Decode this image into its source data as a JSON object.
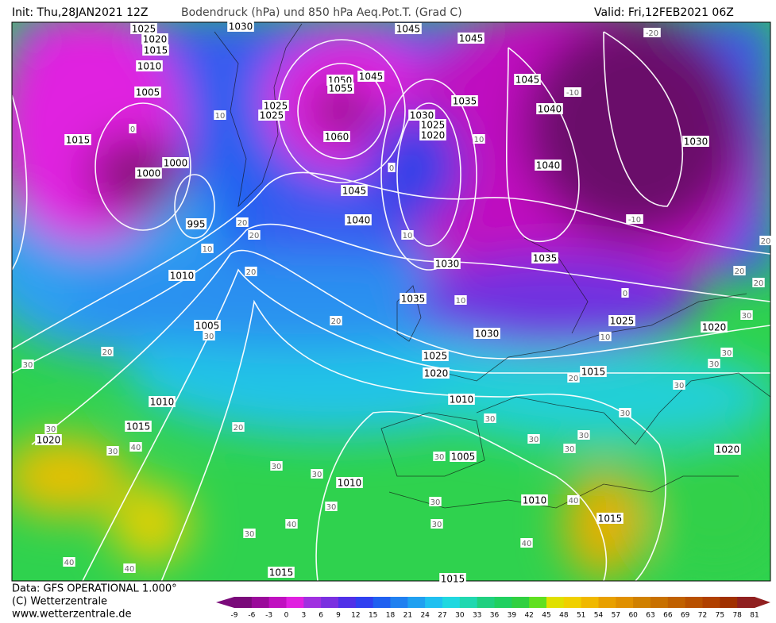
{
  "header": {
    "init": "Init: Thu,28JAN2021 12Z",
    "title": "Bodendruck (hPa) und 850 hPa Aeq.Pot.T. (Grad C)",
    "valid": "Valid: Fri,12FEB2021 06Z"
  },
  "isobar_labels": [
    1030,
    1045,
    1045,
    1025,
    1020,
    1015,
    1010,
    1005,
    1050,
    1055,
    1045,
    1035,
    1040,
    1045,
    1030,
    1025,
    1020,
    1025,
    1025,
    1060,
    1015,
    1000,
    1000,
    995,
    1045,
    1040,
    1040,
    1030,
    1035,
    1010,
    1030,
    1035,
    1005,
    1030,
    1025,
    1020,
    1025,
    1020,
    1015,
    1010,
    1010,
    1015,
    1020,
    1005,
    1010,
    1010,
    1015,
    1020,
    1015,
    1015
  ],
  "temperature_labels": [
    -10,
    -10,
    0,
    10,
    20,
    30,
    30,
    30,
    30,
    30,
    30,
    30,
    30,
    30,
    30,
    30,
    40,
    40,
    40,
    40,
    40,
    40,
    30,
    30,
    20,
    30,
    30,
    20,
    20,
    20,
    10,
    10,
    10,
    0,
    10,
    10,
    20,
    20,
    0,
    20,
    20,
    20,
    30,
    30,
    30,
    30,
    30,
    -20
  ],
  "colorbar": {
    "ticks": [
      -9,
      -6,
      -3,
      0,
      3,
      6,
      9,
      12,
      15,
      18,
      21,
      24,
      27,
      30,
      33,
      36,
      39,
      42,
      45,
      48,
      51,
      54,
      57,
      60,
      63,
      66,
      69,
      72,
      75,
      78,
      81
    ],
    "colors": [
      "#7a0a7a",
      "#9a0a9a",
      "#c010c0",
      "#e020e0",
      "#a030e0",
      "#7a30e0",
      "#5030e8",
      "#3040f0",
      "#2060f0",
      "#2080f0",
      "#20a0f0",
      "#20c0f0",
      "#20d8e0",
      "#20d8b0",
      "#20d080",
      "#20d060",
      "#30d040",
      "#60e020",
      "#e0e000",
      "#f0d000",
      "#f0b800",
      "#e8a000",
      "#e09000",
      "#d08000",
      "#c87000",
      "#c06000",
      "#b85000",
      "#b04000",
      "#a03000",
      "#902020"
    ]
  },
  "footer": {
    "data": "Data: GFS OPERATIONAL 1.000°",
    "copyright": "(C) Wetterzentrale",
    "website": "www.wetterzentrale.de"
  }
}
